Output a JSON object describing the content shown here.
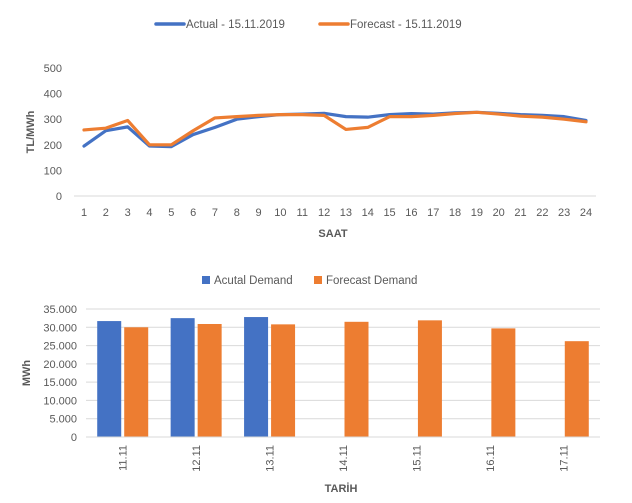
{
  "chart_data": [
    {
      "type": "line",
      "title": "",
      "xlabel": "SAAT",
      "ylabel": "TL/MWh",
      "ylim": [
        0,
        500
      ],
      "y_ticks": [
        "0",
        "100",
        "200",
        "300",
        "400",
        "500"
      ],
      "categories": [
        "1",
        "2",
        "3",
        "4",
        "5",
        "6",
        "7",
        "8",
        "9",
        "10",
        "11",
        "12",
        "13",
        "14",
        "15",
        "16",
        "17",
        "18",
        "19",
        "20",
        "21",
        "22",
        "23",
        "24"
      ],
      "legend_position": "top",
      "grid": false,
      "series": [
        {
          "name": "Actual - 15.11.2019",
          "color": "#4472C4",
          "values": [
            195,
            255,
            270,
            195,
            193,
            240,
            268,
            300,
            310,
            318,
            320,
            323,
            310,
            308,
            318,
            322,
            320,
            325,
            327,
            323,
            318,
            315,
            310,
            295
          ]
        },
        {
          "name": "Forecast - 15.11.2019",
          "color": "#ED7D31",
          "values": [
            258,
            265,
            295,
            200,
            200,
            255,
            305,
            310,
            315,
            318,
            318,
            315,
            260,
            268,
            310,
            310,
            315,
            322,
            327,
            320,
            312,
            308,
            300,
            290
          ]
        }
      ]
    },
    {
      "type": "bar",
      "title": "",
      "xlabel": "TARİH",
      "ylabel": "MWh",
      "ylim": [
        0,
        35000
      ],
      "y_ticks": [
        "0",
        "5.000",
        "10.000",
        "15.000",
        "20.000",
        "25.000",
        "30.000",
        "35.000"
      ],
      "categories": [
        "11.11",
        "12.11",
        "13.11",
        "14.11",
        "15.11",
        "16.11",
        "17.11"
      ],
      "legend_position": "top",
      "grid": true,
      "series": [
        {
          "name": "Acutal Demand",
          "color": "#4472C4",
          "values": [
            31700,
            32500,
            32800,
            null,
            null,
            null,
            null
          ]
        },
        {
          "name": "Forecast Demand",
          "color": "#ED7D31",
          "values": [
            30000,
            30900,
            30800,
            31500,
            31900,
            29700,
            26200
          ]
        }
      ]
    }
  ]
}
